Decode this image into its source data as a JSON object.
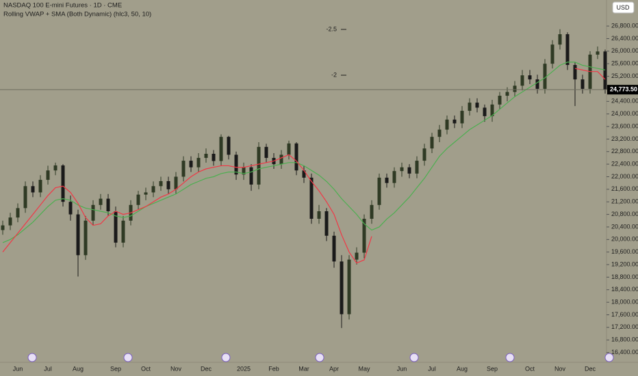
{
  "chart_data": {
    "type": "candlestick",
    "title": "NASDAQ 100 E-mini Futures · 1D · CME",
    "subtitle": "Rolling VWAP + SMA (Both Dynamic) (hlc3, 50, 10)",
    "currency": "USD",
    "annotations": [
      "-2.5",
      "-2"
    ],
    "categories": [
      null,
      null,
      "Jun",
      null,
      null,
      null,
      "Jul",
      null,
      null,
      null,
      "Aug",
      null,
      null,
      null,
      null,
      "Sep",
      null,
      null,
      null,
      "Oct",
      null,
      null,
      null,
      "Nov",
      null,
      null,
      null,
      "Dec",
      null,
      null,
      null,
      null,
      "2025",
      null,
      null,
      null,
      "Feb",
      null,
      null,
      null,
      "Mar",
      null,
      null,
      null,
      "Apr",
      null,
      null,
      null,
      "May",
      null,
      null,
      null,
      null,
      "Jun",
      null,
      null,
      null,
      "Jul",
      null,
      null,
      null,
      "Aug",
      null,
      null,
      null,
      "Sep",
      null,
      null,
      null,
      null,
      "Oct",
      null,
      null,
      null,
      "Nov",
      null,
      null,
      null,
      "Dec",
      null,
      null
    ],
    "open": [
      20300,
      20450,
      20700,
      21000,
      21700,
      21500,
      21900,
      22200,
      22360,
      21200,
      20800,
      19500,
      20600,
      21100,
      21300,
      20900,
      19900,
      20600,
      21100,
      21430,
      21500,
      21700,
      21860,
      21600,
      22000,
      22510,
      22300,
      22600,
      22730,
      22500,
      23270,
      22700,
      22070,
      22300,
      21750,
      22950,
      22600,
      22400,
      22700,
      23060,
      22200,
      21970,
      20660,
      20900,
      20120,
      19300,
      17620,
      19360,
      19580,
      20660,
      21100,
      21970,
      21800,
      22180,
      22300,
      22100,
      22510,
      22900,
      23270,
      23500,
      23820,
      23700,
      24100,
      24360,
      24200,
      23930,
      24300,
      24580,
      24700,
      24900,
      25230,
      25100,
      24800,
      25600,
      26210,
      26540,
      25560,
      25100,
      24800,
      25890,
      25990
    ],
    "high": [
      20600,
      20850,
      21150,
      21850,
      21850,
      22050,
      22350,
      22450,
      22400,
      21400,
      20950,
      20750,
      21250,
      21450,
      21450,
      21050,
      20750,
      21250,
      21550,
      21650,
      21850,
      22000,
      22000,
      22150,
      22650,
      22650,
      22750,
      22900,
      22850,
      23350,
      23300,
      22800,
      22450,
      22400,
      23100,
      23050,
      22750,
      22850,
      23150,
      23100,
      22350,
      22100,
      21100,
      21000,
      20250,
      19500,
      19500,
      19750,
      20800,
      21250,
      22100,
      22100,
      22300,
      22450,
      22400,
      22650,
      23050,
      23400,
      23650,
      23950,
      23950,
      24250,
      24500,
      24500,
      24300,
      24450,
      24700,
      24850,
      25050,
      25400,
      25400,
      25250,
      25750,
      26350,
      26700,
      26600,
      25650,
      25250,
      26000,
      26150,
      26050
    ],
    "low": [
      20150,
      20300,
      20550,
      20850,
      21350,
      21350,
      21750,
      22050,
      21050,
      20600,
      18820,
      19350,
      20450,
      20950,
      20750,
      19750,
      19750,
      20450,
      20950,
      21250,
      21350,
      21550,
      21450,
      21450,
      21850,
      22150,
      22150,
      22450,
      22350,
      22350,
      22550,
      21900,
      21900,
      21550,
      21600,
      22450,
      22250,
      22250,
      22550,
      22050,
      21800,
      20500,
      20500,
      19950,
      19100,
      17180,
      17450,
      19200,
      19400,
      20500,
      20950,
      21650,
      21650,
      22000,
      21950,
      21950,
      22350,
      22750,
      23100,
      23350,
      23550,
      23550,
      23950,
      24050,
      23750,
      23750,
      24150,
      24400,
      24550,
      24750,
      24950,
      24650,
      24650,
      25450,
      26050,
      25400,
      24250,
      24650,
      24650,
      25750,
      24650
    ],
    "close": [
      20450,
      20700,
      21000,
      21700,
      21500,
      21900,
      22200,
      22360,
      21200,
      20800,
      19500,
      20600,
      21100,
      21300,
      20900,
      19900,
      20600,
      21100,
      21430,
      21500,
      21700,
      21860,
      21600,
      22000,
      22510,
      22300,
      22600,
      22730,
      22500,
      23270,
      22700,
      22070,
      22300,
      21750,
      22950,
      22600,
      22400,
      22700,
      23060,
      22200,
      21970,
      20660,
      20900,
      20120,
      19300,
      17620,
      19360,
      19580,
      20660,
      21100,
      21970,
      21800,
      22180,
      22300,
      22100,
      22510,
      22900,
      23270,
      23500,
      23820,
      23700,
      24100,
      24360,
      24200,
      23930,
      24300,
      24580,
      24700,
      24900,
      25230,
      25100,
      24800,
      25600,
      26210,
      26540,
      25560,
      25100,
      24800,
      25890,
      25990,
      24773.5
    ],
    "up_color": "#2f3a24",
    "down_color": "#1a1a1a",
    "lines": [
      {
        "color": "#4caf50",
        "values": [
          19900,
          20000,
          20150,
          20350,
          20550,
          20800,
          21050,
          21250,
          21300,
          21250,
          21100,
          21000,
          20950,
          20900,
          20850,
          20750,
          20700,
          20750,
          20900,
          21050,
          21150,
          21250,
          21350,
          21450,
          21600,
          21750,
          21850,
          21950,
          22000,
          22100,
          22150,
          22150,
          22100,
          22150,
          22250,
          22300,
          22350,
          22400,
          22450,
          22450,
          22350,
          22200,
          22050,
          21850,
          21600,
          21300,
          21050,
          20800,
          20500,
          20300,
          20400,
          20650,
          20850,
          21100,
          21350,
          21650,
          21950,
          22300,
          22650,
          22900,
          23100,
          23300,
          23500,
          23650,
          23800,
          23950,
          24150,
          24350,
          24550,
          24700,
          24850,
          25000,
          25150,
          25350,
          25550,
          25650,
          25650,
          25550,
          25500,
          25450,
          25400
        ]
      },
      {
        "color": "#f23645",
        "values": [
          19600,
          19900,
          20200,
          20500,
          20800,
          21100,
          21400,
          21650,
          21700,
          21500,
          21150,
          20700,
          20450,
          20500,
          20750,
          20900,
          20800,
          20850,
          20950,
          21050,
          21200,
          21350,
          21450,
          21600,
          21800,
          22000,
          22150,
          22250,
          22300,
          22350,
          22350,
          22300,
          22300,
          22350,
          22400,
          22450,
          22500,
          22600,
          22700,
          22500,
          22200,
          21850,
          21550,
          21200,
          20800,
          20150,
          19600,
          19250,
          19350,
          20100,
          null,
          null,
          null,
          null,
          null,
          null,
          null,
          null,
          null,
          null,
          null,
          null,
          null,
          null,
          null,
          null,
          null,
          null,
          null,
          null,
          null,
          null,
          null,
          null,
          null,
          null,
          25450,
          25400,
          25350,
          25350,
          25100
        ]
      }
    ],
    "last_price": {
      "value": 24773.5,
      "label": "24,773.50"
    },
    "ylim": [
      16130,
      27630
    ],
    "yticks": [
      {
        "value": 16400,
        "label": "16,400.00"
      },
      {
        "value": 16800,
        "label": "16,800.00"
      },
      {
        "value": 17200,
        "label": "17,200.00"
      },
      {
        "value": 17600,
        "label": "17,600.00"
      },
      {
        "value": 18000,
        "label": "18,000.00"
      },
      {
        "value": 18400,
        "label": "18,400.00"
      },
      {
        "value": 18800,
        "label": "18,800.00"
      },
      {
        "value": 19200,
        "label": "19,200.00"
      },
      {
        "value": 19600,
        "label": "19,600.00"
      },
      {
        "value": 20000,
        "label": "20,000.00"
      },
      {
        "value": 20400,
        "label": "20,400.00"
      },
      {
        "value": 20800,
        "label": "20,800.00"
      },
      {
        "value": 21200,
        "label": "21,200.00"
      },
      {
        "value": 21600,
        "label": "21,600.00"
      },
      {
        "value": 22000,
        "label": "22,000.00"
      },
      {
        "value": 22400,
        "label": "22,400.00"
      },
      {
        "value": 22800,
        "label": "22,800.00"
      },
      {
        "value": 23200,
        "label": "23,200.00"
      },
      {
        "value": 23600,
        "label": "23,600.00"
      },
      {
        "value": 24000,
        "label": "24,000.00"
      },
      {
        "value": 24400,
        "label": "24,400.00"
      },
      {
        "value": 24800,
        "label": "24,800.00"
      },
      {
        "value": 25200,
        "label": "25,200.00"
      },
      {
        "value": 25600,
        "label": "25,600.00"
      },
      {
        "value": 26000,
        "label": "26,000.00"
      },
      {
        "value": 26400,
        "label": "26,400.00"
      },
      {
        "value": 26800,
        "label": "26,800.00"
      }
    ]
  }
}
